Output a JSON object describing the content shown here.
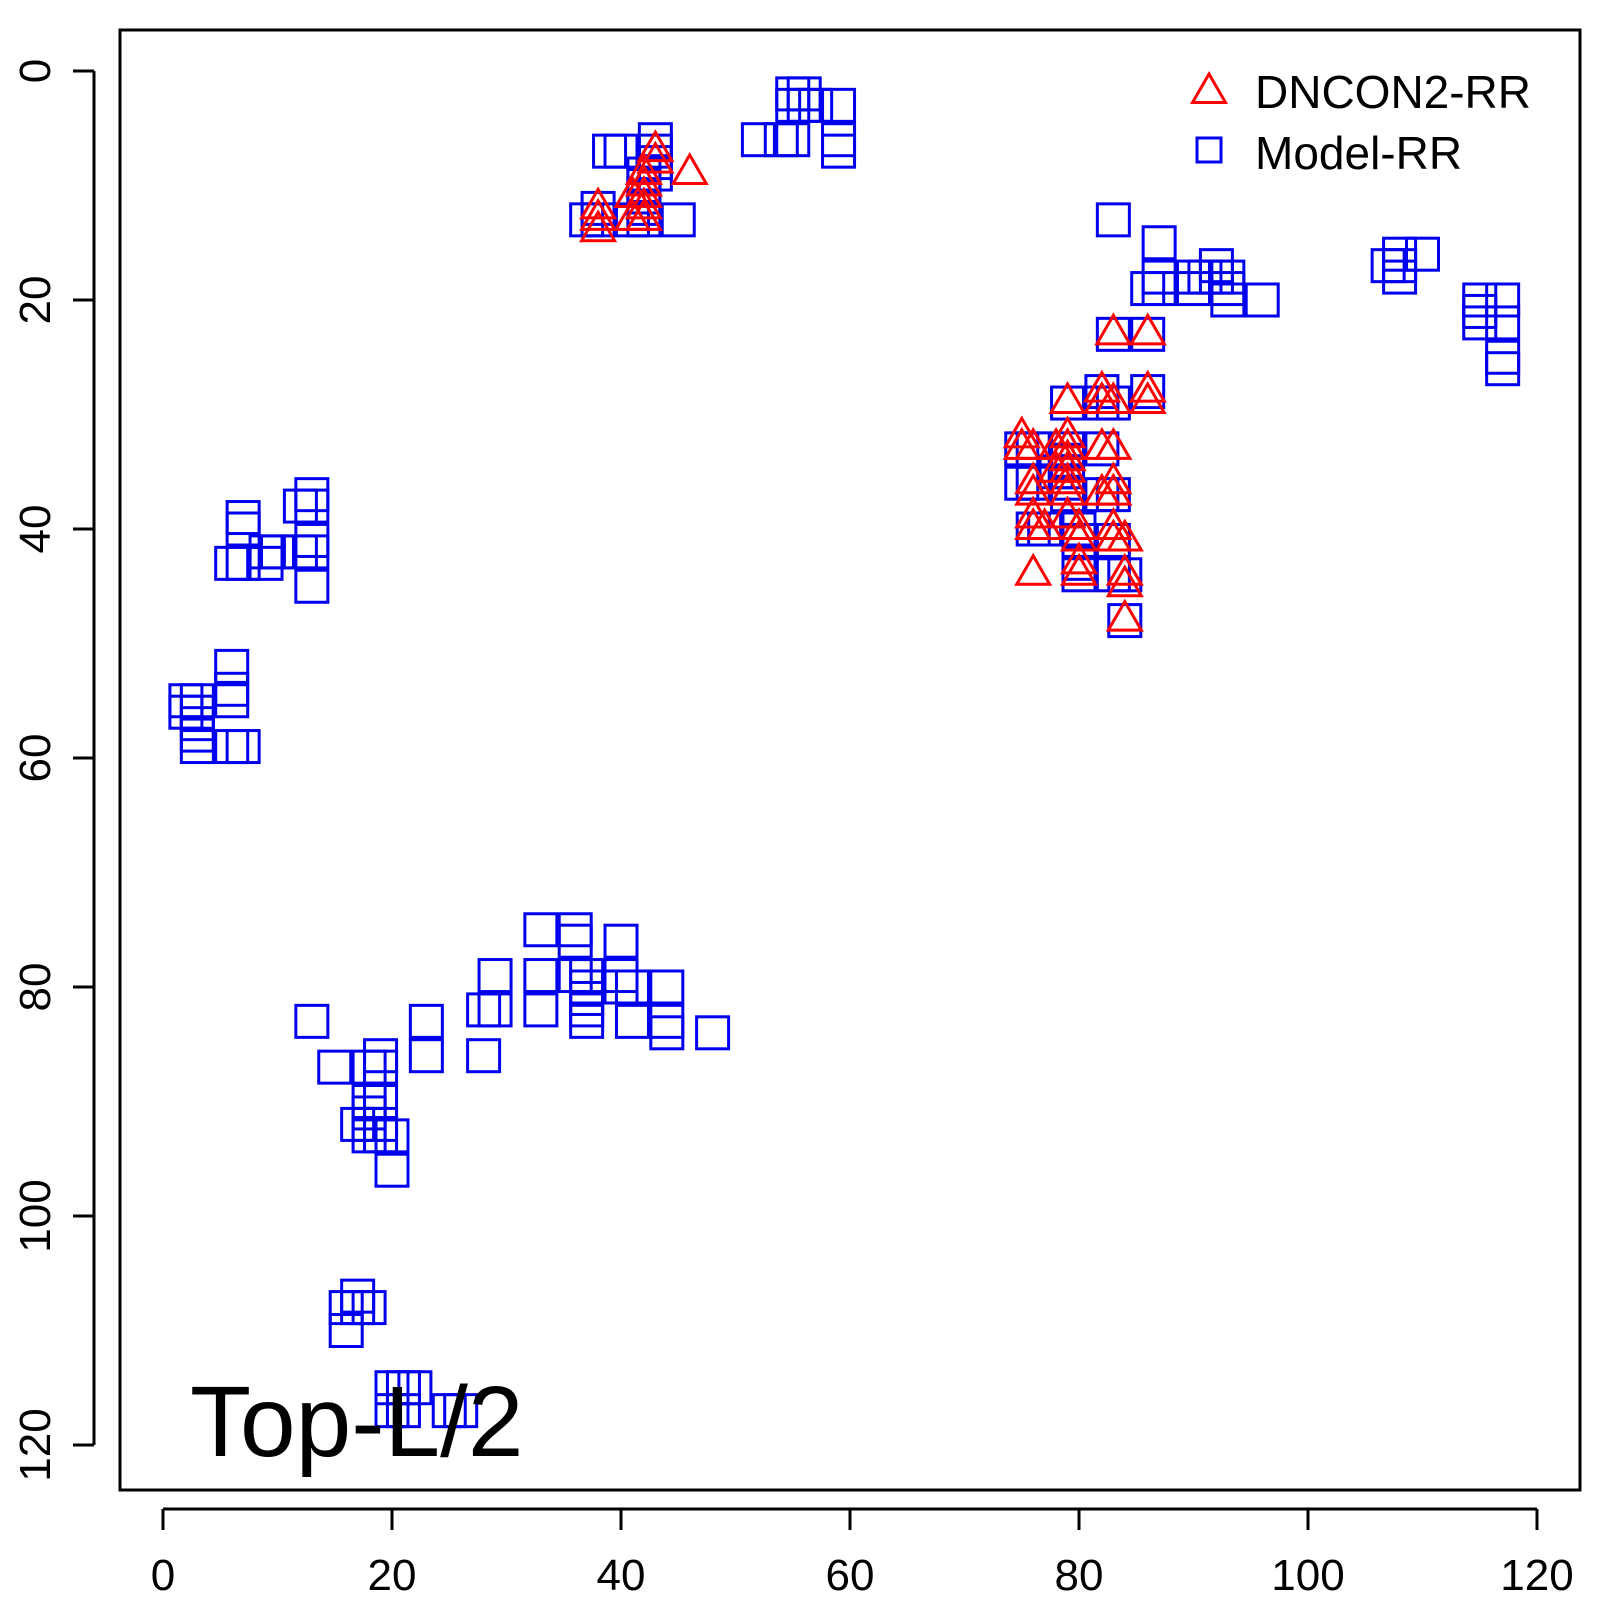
{
  "chart_data": {
    "type": "scatter",
    "title": "",
    "xlabel": "",
    "ylabel": "",
    "xlim": [
      -2,
      124
    ],
    "ylim": [
      -3.5,
      124
    ],
    "y_reversed": true,
    "xticks": [
      0,
      20,
      40,
      60,
      80,
      100,
      120
    ],
    "yticks": [
      0,
      20,
      40,
      60,
      80,
      100,
      120
    ],
    "grid": false,
    "legend_position": "top-right",
    "annotation": "Top-L/2",
    "series": [
      {
        "name": "DNCON2-RR",
        "marker": "triangle",
        "color": "#ff0000",
        "points": [
          [
            38,
            12
          ],
          [
            38,
            13
          ],
          [
            38,
            14
          ],
          [
            41,
            11
          ],
          [
            41,
            13
          ],
          [
            42,
            9
          ],
          [
            42,
            10
          ],
          [
            42,
            11
          ],
          [
            42,
            12
          ],
          [
            42,
            13
          ],
          [
            43,
            7
          ],
          [
            43,
            8
          ],
          [
            46,
            9
          ],
          [
            75,
            32
          ],
          [
            75,
            33
          ],
          [
            76,
            33
          ],
          [
            76,
            36
          ],
          [
            76,
            37
          ],
          [
            76,
            39
          ],
          [
            76,
            40
          ],
          [
            77,
            40
          ],
          [
            76,
            44
          ],
          [
            78,
            33
          ],
          [
            78,
            35
          ],
          [
            79,
            29
          ],
          [
            79,
            32
          ],
          [
            79,
            33
          ],
          [
            79,
            34
          ],
          [
            79,
            35
          ],
          [
            79,
            36
          ],
          [
            79,
            37
          ],
          [
            79,
            39
          ],
          [
            80,
            40
          ],
          [
            80,
            41
          ],
          [
            80,
            43
          ],
          [
            80,
            44
          ],
          [
            82,
            28
          ],
          [
            82,
            29
          ],
          [
            82,
            33
          ],
          [
            82,
            37
          ],
          [
            83,
            23
          ],
          [
            83,
            29
          ],
          [
            83,
            33
          ],
          [
            83,
            36
          ],
          [
            83,
            37
          ],
          [
            83,
            40
          ],
          [
            83,
            41
          ],
          [
            84,
            41
          ],
          [
            84,
            44
          ],
          [
            84,
            45
          ],
          [
            84,
            48
          ],
          [
            86,
            23
          ],
          [
            86,
            28
          ],
          [
            86,
            29
          ]
        ]
      },
      {
        "name": "Model-RR",
        "marker": "square",
        "color": "#0000ee",
        "points": [
          [
            37,
            13
          ],
          [
            38,
            12
          ],
          [
            38,
            13
          ],
          [
            39,
            7
          ],
          [
            40,
            7
          ],
          [
            41,
            13
          ],
          [
            42,
            13
          ],
          [
            42,
            9
          ],
          [
            42,
            10
          ],
          [
            42,
            11
          ],
          [
            42,
            12
          ],
          [
            43,
            6
          ],
          [
            43,
            7
          ],
          [
            43,
            8
          ],
          [
            43,
            9
          ],
          [
            45,
            13
          ],
          [
            52,
            6
          ],
          [
            54,
            6
          ],
          [
            55,
            2
          ],
          [
            55,
            3
          ],
          [
            55,
            6
          ],
          [
            56,
            2
          ],
          [
            56,
            3
          ],
          [
            57,
            3
          ],
          [
            59,
            3
          ],
          [
            59,
            6
          ],
          [
            59,
            7
          ],
          [
            83,
            13
          ],
          [
            87,
            15
          ],
          [
            86,
            19
          ],
          [
            87,
            18
          ],
          [
            87,
            19
          ],
          [
            90,
            18
          ],
          [
            90,
            19
          ],
          [
            91,
            18
          ],
          [
            92,
            17
          ],
          [
            92,
            18
          ],
          [
            93,
            18
          ],
          [
            93,
            19
          ],
          [
            93,
            20
          ],
          [
            96,
            20
          ],
          [
            107,
            17
          ],
          [
            108,
            16
          ],
          [
            108,
            17
          ],
          [
            108,
            18
          ],
          [
            110,
            16
          ],
          [
            115,
            20
          ],
          [
            115,
            21
          ],
          [
            115,
            22
          ],
          [
            117,
            20
          ],
          [
            117,
            22
          ],
          [
            117,
            25
          ],
          [
            117,
            26
          ],
          [
            83,
            23
          ],
          [
            86,
            23
          ],
          [
            86,
            28
          ],
          [
            82,
            28
          ],
          [
            82,
            29
          ],
          [
            79,
            29
          ],
          [
            83,
            29
          ],
          [
            75,
            33
          ],
          [
            76,
            33
          ],
          [
            75,
            36
          ],
          [
            76,
            36
          ],
          [
            76,
            40
          ],
          [
            77,
            40
          ],
          [
            78,
            35
          ],
          [
            79,
            33
          ],
          [
            79,
            34
          ],
          [
            79,
            35
          ],
          [
            79,
            36
          ],
          [
            79,
            37
          ],
          [
            80,
            40
          ],
          [
            80,
            41
          ],
          [
            80,
            43
          ],
          [
            80,
            44
          ],
          [
            82,
            33
          ],
          [
            82,
            37
          ],
          [
            83,
            37
          ],
          [
            83,
            41
          ],
          [
            83,
            44
          ],
          [
            84,
            44
          ],
          [
            84,
            48
          ],
          [
            7,
            39
          ],
          [
            7,
            40
          ],
          [
            6,
            43
          ],
          [
            7,
            43
          ],
          [
            9,
            43
          ],
          [
            9,
            42
          ],
          [
            10,
            42
          ],
          [
            12,
            42
          ],
          [
            12,
            38
          ],
          [
            13,
            37
          ],
          [
            13,
            38
          ],
          [
            13,
            41
          ],
          [
            13,
            42
          ],
          [
            13,
            45
          ],
          [
            2,
            55
          ],
          [
            2,
            56
          ],
          [
            3,
            55
          ],
          [
            3,
            56
          ],
          [
            3,
            57
          ],
          [
            3,
            58
          ],
          [
            3,
            59
          ],
          [
            6,
            52
          ],
          [
            6,
            54
          ],
          [
            6,
            55
          ],
          [
            6,
            59
          ],
          [
            7,
            59
          ],
          [
            13,
            83
          ],
          [
            15,
            87
          ],
          [
            18,
            87
          ],
          [
            19,
            86
          ],
          [
            19,
            87
          ],
          [
            18,
            90
          ],
          [
            19,
            90
          ],
          [
            17,
            92
          ],
          [
            18,
            91
          ],
          [
            18,
            92
          ],
          [
            18,
            93
          ],
          [
            19,
            92
          ],
          [
            19,
            93
          ],
          [
            20,
            93
          ],
          [
            20,
            96
          ],
          [
            23,
            83
          ],
          [
            23,
            86
          ],
          [
            28,
            82
          ],
          [
            29,
            82
          ],
          [
            29,
            79
          ],
          [
            28,
            86
          ],
          [
            33,
            75
          ],
          [
            33,
            79
          ],
          [
            33,
            82
          ],
          [
            36,
            75
          ],
          [
            36,
            76
          ],
          [
            36,
            79
          ],
          [
            37,
            79
          ],
          [
            37,
            80
          ],
          [
            37,
            81
          ],
          [
            37,
            82
          ],
          [
            37,
            83
          ],
          [
            40,
            76
          ],
          [
            40,
            79
          ],
          [
            40,
            80
          ],
          [
            41,
            80
          ],
          [
            41,
            83
          ],
          [
            44,
            80
          ],
          [
            44,
            83
          ],
          [
            44,
            84
          ],
          [
            48,
            84
          ],
          [
            16,
            108
          ],
          [
            16,
            110
          ],
          [
            17,
            107
          ],
          [
            17,
            108
          ],
          [
            18,
            108
          ],
          [
            20,
            115
          ],
          [
            20,
            117
          ],
          [
            21,
            115
          ],
          [
            21,
            117
          ],
          [
            22,
            115
          ],
          [
            25,
            117
          ],
          [
            26,
            117
          ]
        ]
      }
    ]
  }
}
